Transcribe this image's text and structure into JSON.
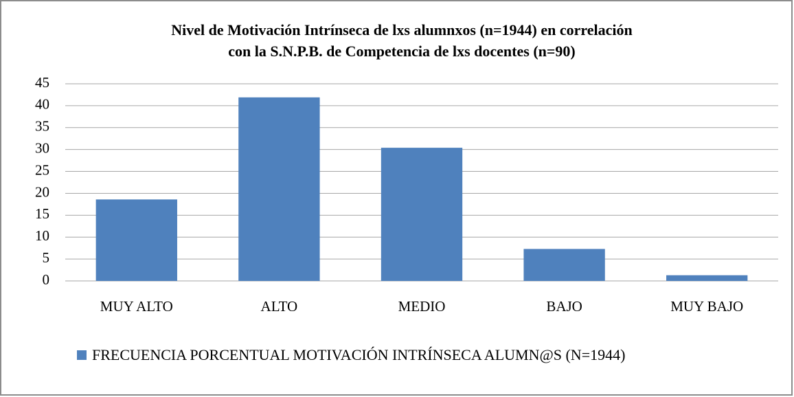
{
  "chart_data": {
    "type": "bar",
    "title": [
      "Nivel de Motivación Intrínseca de lxs alumnxos (n=1944) en correlación",
      "con la S.N.P.B. de Competencia de lxs docentes (n=90)"
    ],
    "categories": [
      "MUY ALTO",
      "ALTO",
      "MEDIO",
      "BAJO",
      "MUY BAJO"
    ],
    "series": [
      {
        "name": "FRECUENCIA PORCENTUAL MOTIVACIÓN INTRÍNSECA ALUMN@S (N=1944)",
        "color": "#4f81bd",
        "values": [
          18.6,
          41.9,
          30.4,
          7.3,
          1.3
        ]
      }
    ],
    "ylim": [
      0,
      45
    ],
    "yticks": [
      0,
      5,
      10,
      15,
      20,
      25,
      30,
      35,
      40,
      45
    ],
    "grid": true,
    "legend": "bottom"
  }
}
